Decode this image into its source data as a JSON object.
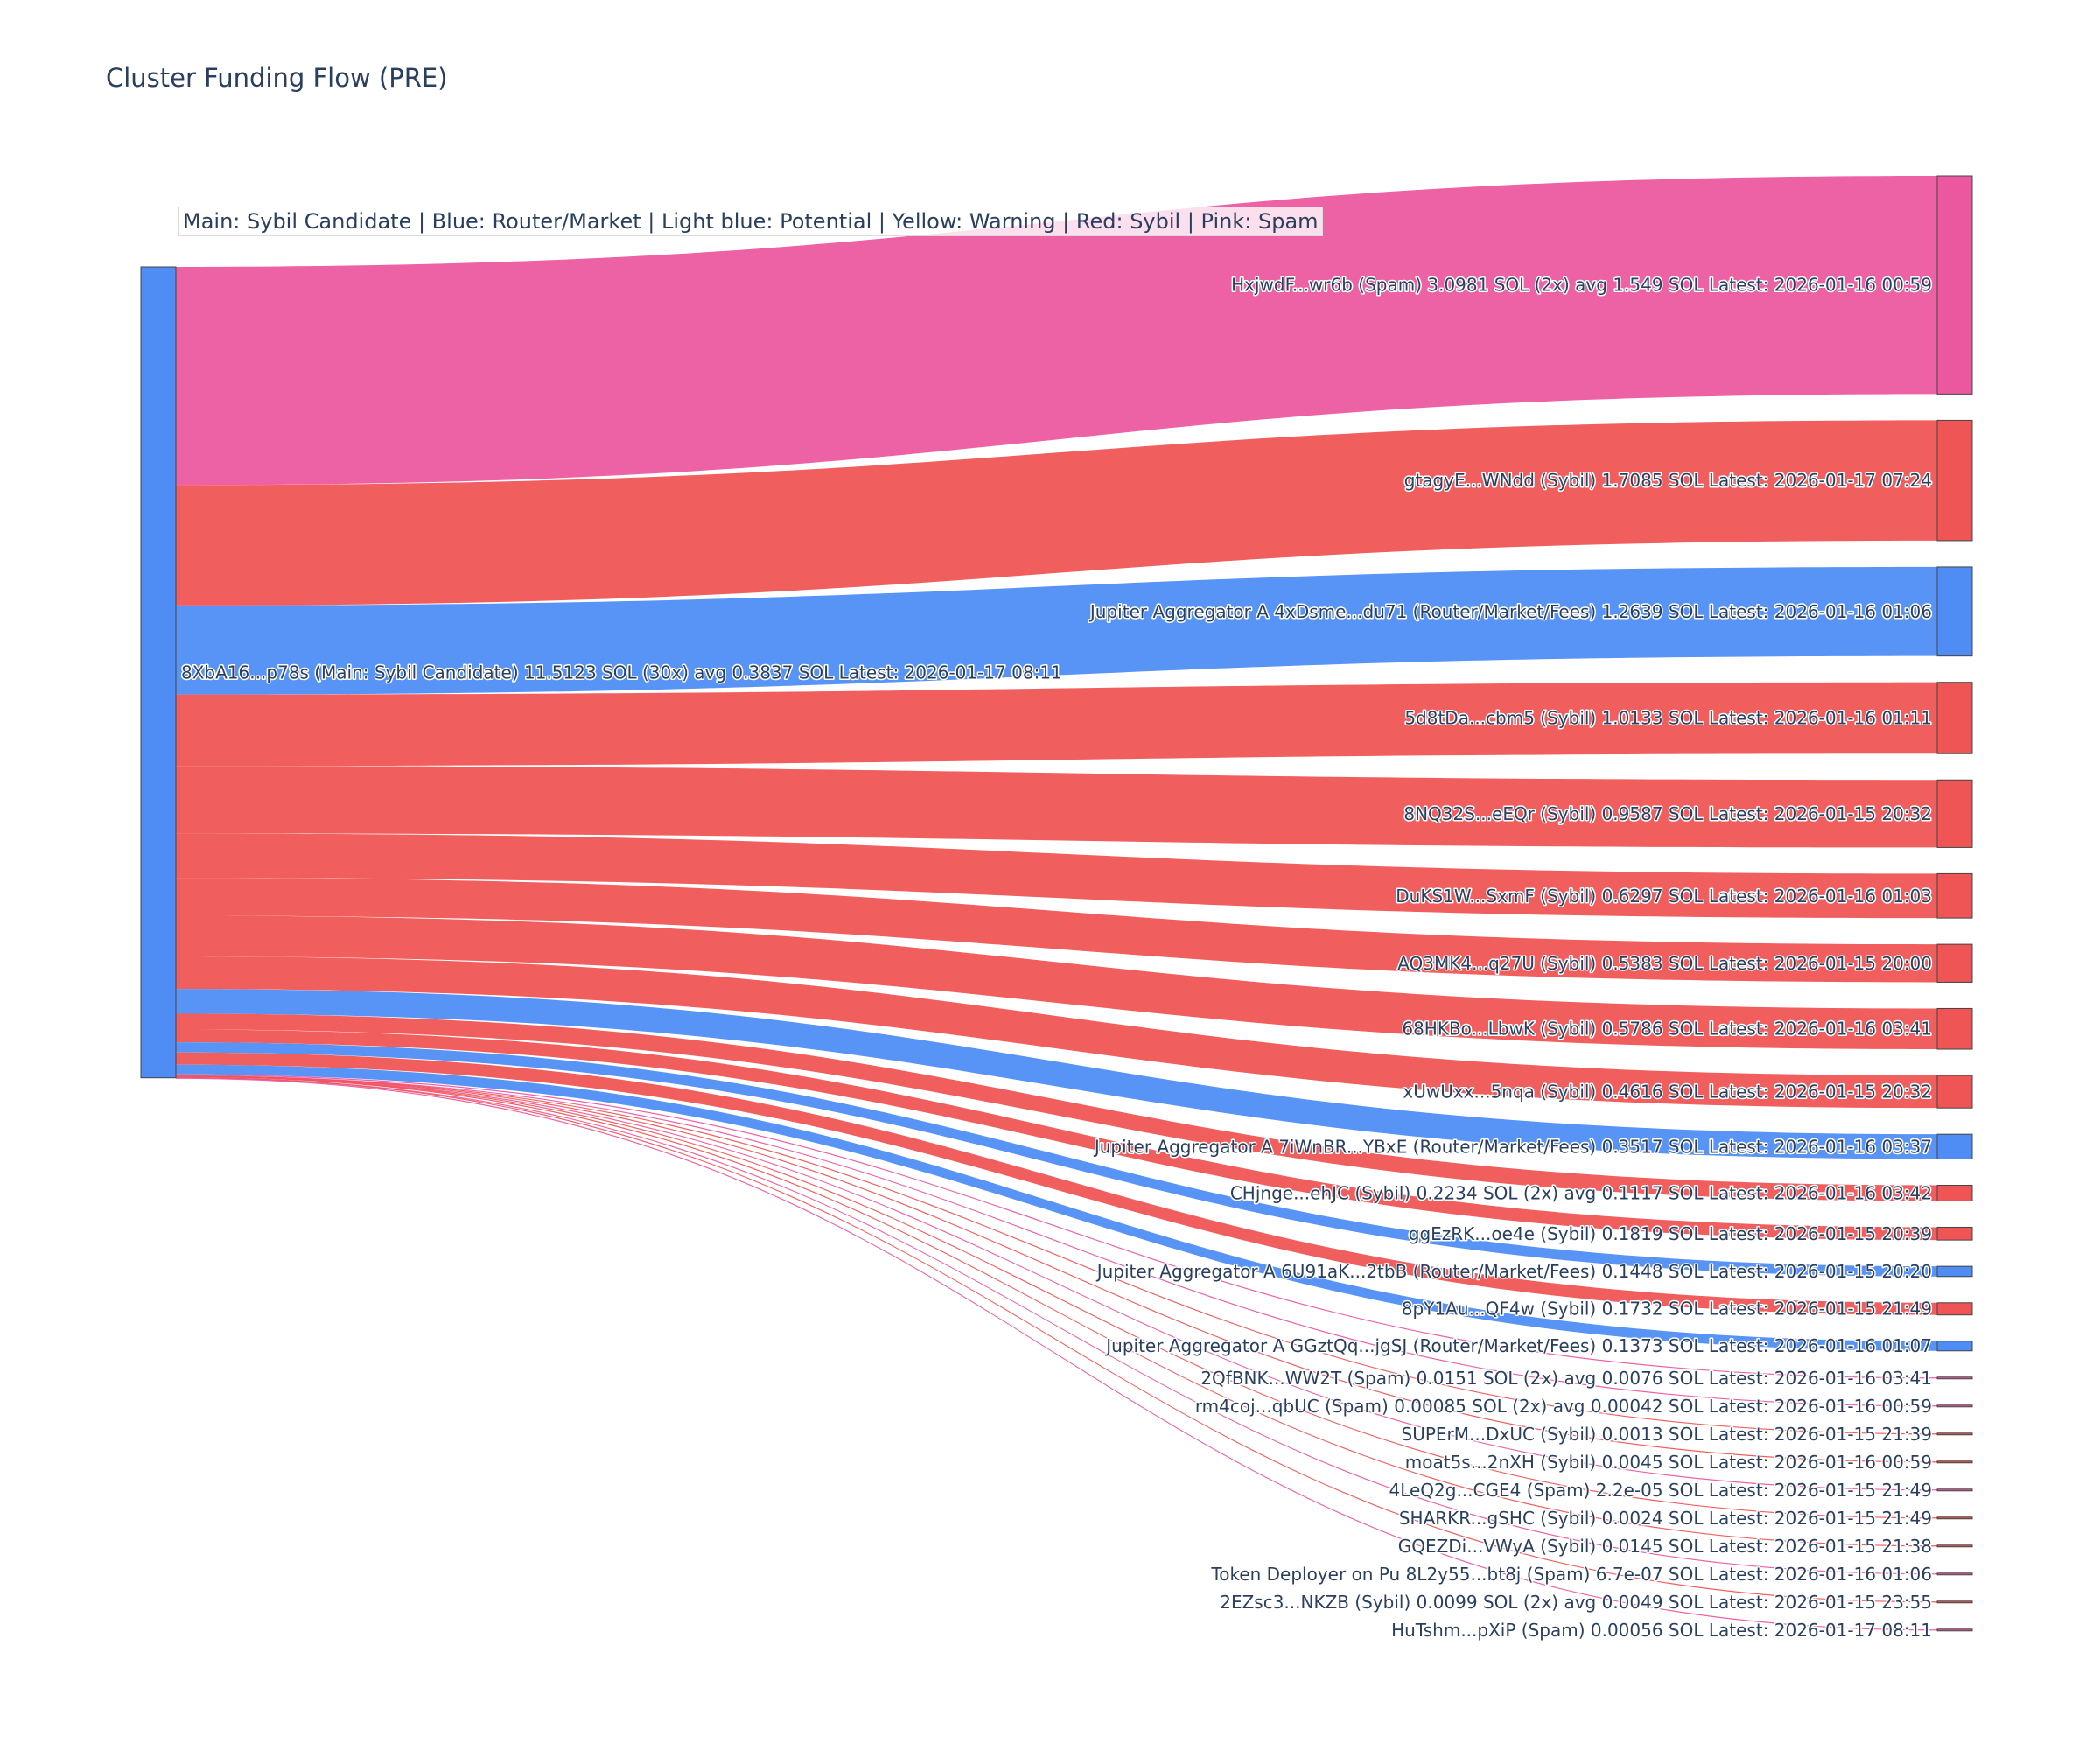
{
  "title": "Cluster Funding Flow (PRE)",
  "legend_note": "Main: Sybil Candidate  |  Blue: Router/Market | Light blue: Potential | Yellow: Warning | Red: Sybil | Pink: Spam",
  "colors": {
    "router": "#4f8df5",
    "sybil": "#ef5555",
    "spam": "#ec58a0",
    "main": "#4f8df5"
  },
  "chart_data": {
    "type": "sankey",
    "title": "Cluster Funding Flow (PRE)",
    "source": {
      "label": "8XbA16...p78s (Main: Sybil Candidate) 11.5123 SOL (30x) avg 0.3837 SOL Latest: 2026-01-17 08:11",
      "category": "main",
      "total_sol": 11.5123
    },
    "targets": [
      {
        "label": "HxjwdF...wr6b (Spam) 3.0981 SOL (2x) avg 1.549 SOL Latest: 2026-01-16 00:59",
        "value": 3.0981,
        "category": "spam"
      },
      {
        "label": "gtagyE...WNdd (Sybil) 1.7085 SOL Latest: 2026-01-17 07:24",
        "value": 1.7085,
        "category": "sybil"
      },
      {
        "label": "Jupiter Aggregator A 4xDsme...du71 (Router/Market/Fees) 1.2639 SOL Latest: 2026-01-16 01:06",
        "value": 1.2639,
        "category": "router"
      },
      {
        "label": "5d8tDa...cbm5 (Sybil) 1.0133 SOL Latest: 2026-01-16 01:11",
        "value": 1.0133,
        "category": "sybil"
      },
      {
        "label": "8NQ32S...eEQr (Sybil) 0.9587 SOL Latest: 2026-01-15 20:32",
        "value": 0.9587,
        "category": "sybil"
      },
      {
        "label": "DuKS1W...SxmF (Sybil) 0.6297 SOL Latest: 2026-01-16 01:03",
        "value": 0.6297,
        "category": "sybil"
      },
      {
        "label": "AQ3MK4...q27U (Sybil) 0.5383 SOL Latest: 2026-01-15 20:00",
        "value": 0.5383,
        "category": "sybil"
      },
      {
        "label": "68HKBo...LbwK (Sybil) 0.5786 SOL Latest: 2026-01-16 03:41",
        "value": 0.5786,
        "category": "sybil"
      },
      {
        "label": "xUwUxx...5nqa (Sybil) 0.4616 SOL Latest: 2026-01-15 20:32",
        "value": 0.4616,
        "category": "sybil"
      },
      {
        "label": "Jupiter Aggregator A 7iWnBR...YBxE (Router/Market/Fees) 0.3517 SOL Latest: 2026-01-16 03:37",
        "value": 0.3517,
        "category": "router"
      },
      {
        "label": "CHjnge...ehJC (Sybil) 0.2234 SOL (2x) avg 0.1117 SOL Latest: 2026-01-16 03:42",
        "value": 0.2234,
        "category": "sybil"
      },
      {
        "label": "ggEzRK...oe4e (Sybil) 0.1819 SOL Latest: 2026-01-15 20:39",
        "value": 0.1819,
        "category": "sybil"
      },
      {
        "label": "Jupiter Aggregator A 6U91aK...2tbB (Router/Market/Fees) 0.1448 SOL Latest: 2026-01-15 20:20",
        "value": 0.1448,
        "category": "router"
      },
      {
        "label": "8pY1Au...QF4w (Sybil) 0.1732 SOL Latest: 2026-01-15 21:49",
        "value": 0.1732,
        "category": "sybil"
      },
      {
        "label": "Jupiter Aggregator A GGztQq...jgSJ (Router/Market/Fees) 0.1373 SOL Latest: 2026-01-16 01:07",
        "value": 0.1373,
        "category": "router"
      },
      {
        "label": "2QfBNK...WW2T (Spam) 0.0151 SOL (2x) avg 0.0076 SOL Latest: 2026-01-16 03:41",
        "value": 0.0151,
        "category": "spam"
      },
      {
        "label": "rm4coj...qbUC (Spam) 0.00085 SOL (2x) avg 0.00042 SOL Latest: 2026-01-16 00:59",
        "value": 0.00085,
        "category": "spam"
      },
      {
        "label": "SUPErM...DxUC (Sybil) 0.0013 SOL Latest: 2026-01-15 21:39",
        "value": 0.0013,
        "category": "sybil"
      },
      {
        "label": "moat5s...2nXH (Sybil) 0.0045 SOL Latest: 2026-01-16 00:59",
        "value": 0.0045,
        "category": "sybil"
      },
      {
        "label": "4LeQ2g...CGE4 (Spam) 2.2e-05 SOL Latest: 2026-01-15 21:49",
        "value": 2.2e-05,
        "category": "spam"
      },
      {
        "label": "SHARKR...gSHC (Sybil) 0.0024 SOL Latest: 2026-01-15 21:49",
        "value": 0.0024,
        "category": "sybil"
      },
      {
        "label": "GQEZDi...VWyA (Sybil) 0.0145 SOL Latest: 2026-01-15 21:38",
        "value": 0.0145,
        "category": "sybil"
      },
      {
        "label": "Token Deployer on Pu 8L2y55...bt8j (Spam) 6.7e-07 SOL Latest: 2026-01-16 01:06",
        "value": 6.7e-07,
        "category": "spam"
      },
      {
        "label": "2EZsc3...NKZB (Sybil) 0.0099 SOL (2x) avg 0.0049 SOL Latest: 2026-01-15 23:55",
        "value": 0.0099,
        "category": "sybil"
      },
      {
        "label": "HuTshm...pXiP (Spam) 0.00056 SOL Latest: 2026-01-17 08:11",
        "value": 0.00056,
        "category": "spam"
      }
    ]
  }
}
